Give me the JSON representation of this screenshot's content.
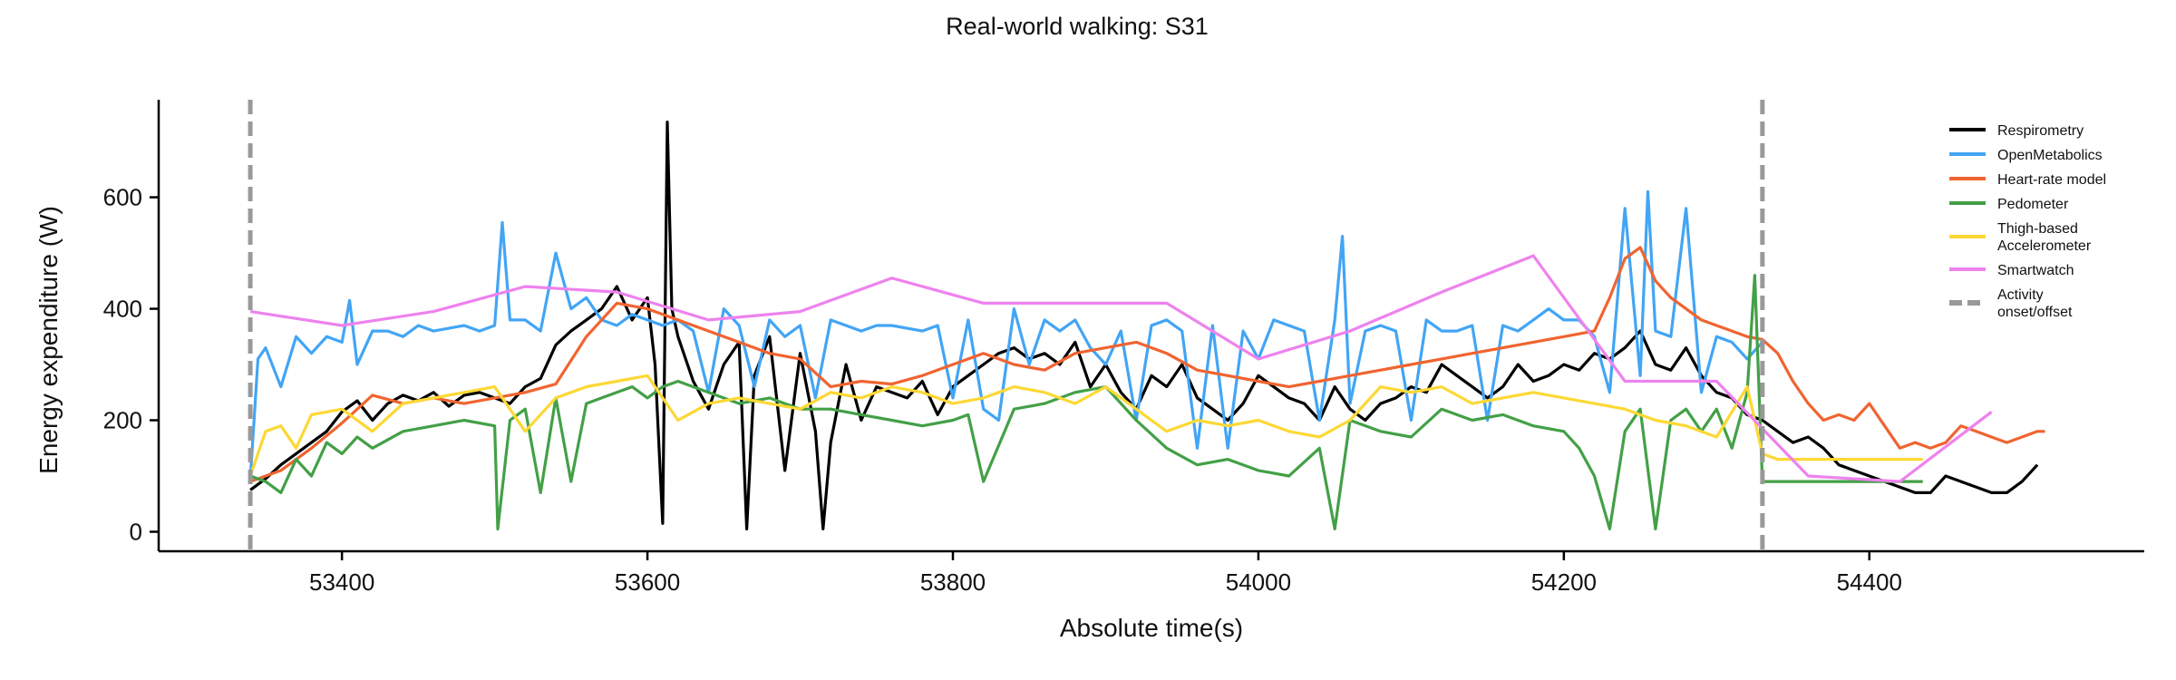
{
  "chart_data": {
    "type": "line",
    "title": "Real-world walking: S31",
    "xlabel": "Absolute time(s)",
    "ylabel": "Energy expenditure (W)",
    "xlim": [
      53280,
      54580
    ],
    "ylim": [
      -35,
      775
    ],
    "xticks": [
      53400,
      53600,
      53800,
      54000,
      54200,
      54400
    ],
    "yticks": [
      0,
      200,
      400,
      600
    ],
    "grid": false,
    "legend_position": "top-right",
    "series": [
      {
        "name": "Respirometry",
        "color": "#000000",
        "x": [
          53340,
          53350,
          53360,
          53370,
          53380,
          53390,
          53400,
          53410,
          53420,
          53430,
          53440,
          53450,
          53460,
          53470,
          53480,
          53490,
          53500,
          53510,
          53520,
          53530,
          53540,
          53550,
          53560,
          53570,
          53580,
          53590,
          53600,
          53605,
          53610,
          53613,
          53616,
          53620,
          53630,
          53640,
          53650,
          53660,
          53665,
          53670,
          53680,
          53690,
          53700,
          53710,
          53715,
          53720,
          53730,
          53740,
          53750,
          53760,
          53770,
          53780,
          53790,
          53800,
          53810,
          53820,
          53830,
          53840,
          53850,
          53860,
          53870,
          53880,
          53890,
          53900,
          53910,
          53920,
          53930,
          53940,
          53950,
          53960,
          53970,
          53980,
          53990,
          54000,
          54010,
          54020,
          54030,
          54040,
          54050,
          54060,
          54070,
          54080,
          54090,
          54100,
          54110,
          54120,
          54130,
          54140,
          54150,
          54160,
          54170,
          54180,
          54190,
          54200,
          54210,
          54220,
          54230,
          54240,
          54250,
          54260,
          54270,
          54280,
          54290,
          54300,
          54310,
          54320,
          54330,
          54340,
          54350,
          54360,
          54370,
          54380,
          54390,
          54400,
          54410,
          54420,
          54430,
          54440,
          54450,
          54460,
          54470,
          54480,
          54490,
          54500,
          54510
        ],
        "y": [
          75,
          95,
          120,
          140,
          160,
          180,
          215,
          235,
          200,
          230,
          245,
          235,
          250,
          225,
          245,
          250,
          240,
          230,
          260,
          275,
          335,
          360,
          380,
          400,
          440,
          380,
          420,
          300,
          15,
          735,
          400,
          350,
          270,
          220,
          300,
          340,
          5,
          280,
          350,
          110,
          320,
          180,
          5,
          160,
          300,
          200,
          260,
          250,
          240,
          270,
          210,
          260,
          280,
          300,
          320,
          330,
          310,
          320,
          300,
          340,
          260,
          300,
          250,
          220,
          280,
          260,
          300,
          240,
          220,
          200,
          230,
          280,
          260,
          240,
          230,
          200,
          260,
          220,
          200,
          230,
          240,
          260,
          250,
          300,
          280,
          260,
          240,
          260,
          300,
          270,
          280,
          300,
          290,
          320,
          310,
          330,
          360,
          300,
          290,
          330,
          280,
          250,
          240,
          210,
          200,
          180,
          160,
          170,
          150,
          120,
          110,
          100,
          90,
          80,
          70,
          70,
          100,
          90,
          80,
          70,
          70,
          90,
          120
        ]
      },
      {
        "name": "OpenMetabolics",
        "color": "#42A5F5",
        "x": [
          53340,
          53345,
          53350,
          53360,
          53370,
          53380,
          53390,
          53400,
          53405,
          53410,
          53420,
          53430,
          53440,
          53450,
          53460,
          53470,
          53480,
          53490,
          53500,
          53505,
          53510,
          53520,
          53530,
          53540,
          53550,
          53560,
          53570,
          53580,
          53590,
          53600,
          53610,
          53620,
          53630,
          53640,
          53650,
          53660,
          53670,
          53680,
          53690,
          53700,
          53710,
          53720,
          53730,
          53740,
          53750,
          53760,
          53770,
          53780,
          53790,
          53800,
          53810,
          53820,
          53830,
          53840,
          53850,
          53860,
          53870,
          53880,
          53890,
          53900,
          53910,
          53920,
          53930,
          53940,
          53950,
          53960,
          53970,
          53980,
          53990,
          54000,
          54010,
          54020,
          54030,
          54040,
          54050,
          54055,
          54060,
          54070,
          54080,
          54090,
          54100,
          54110,
          54120,
          54130,
          54140,
          54150,
          54160,
          54170,
          54180,
          54190,
          54200,
          54210,
          54220,
          54230,
          54240,
          54250,
          54255,
          54260,
          54270,
          54280,
          54290,
          54300,
          54310,
          54320,
          54330
        ],
        "y": [
          95,
          310,
          330,
          260,
          350,
          320,
          350,
          340,
          415,
          300,
          360,
          360,
          350,
          370,
          360,
          365,
          370,
          360,
          370,
          555,
          380,
          380,
          360,
          500,
          400,
          420,
          380,
          370,
          390,
          380,
          370,
          380,
          360,
          250,
          400,
          370,
          260,
          380,
          350,
          370,
          240,
          380,
          370,
          360,
          370,
          370,
          365,
          360,
          370,
          240,
          380,
          220,
          200,
          400,
          300,
          380,
          360,
          380,
          330,
          300,
          360,
          200,
          370,
          380,
          360,
          150,
          370,
          150,
          360,
          310,
          380,
          370,
          360,
          200,
          380,
          530,
          230,
          360,
          370,
          360,
          200,
          380,
          360,
          360,
          370,
          200,
          370,
          360,
          380,
          400,
          380,
          380,
          350,
          250,
          580,
          280,
          610,
          360,
          350,
          580,
          250,
          350,
          340,
          310,
          340
        ]
      },
      {
        "name": "Heart-rate model",
        "color": "#F06430",
        "x": [
          53340,
          53360,
          53380,
          53400,
          53420,
          53440,
          53460,
          53480,
          53500,
          53520,
          53540,
          53560,
          53580,
          53600,
          53620,
          53640,
          53660,
          53680,
          53700,
          53720,
          53740,
          53760,
          53780,
          53800,
          53820,
          53840,
          53860,
          53880,
          53900,
          53920,
          53940,
          53960,
          53980,
          54000,
          54020,
          54040,
          54060,
          54080,
          54100,
          54120,
          54140,
          54160,
          54180,
          54200,
          54220,
          54230,
          54240,
          54250,
          54260,
          54270,
          54280,
          54290,
          54300,
          54310,
          54320,
          54330,
          54340,
          54350,
          54360,
          54370,
          54380,
          54390,
          54400,
          54410,
          54420,
          54430,
          54440,
          54450,
          54460,
          54470,
          54480,
          54490,
          54500,
          54510,
          54515
        ],
        "y": [
          90,
          110,
          150,
          195,
          245,
          230,
          240,
          230,
          240,
          250,
          265,
          350,
          410,
          400,
          380,
          360,
          340,
          320,
          310,
          260,
          270,
          265,
          280,
          300,
          320,
          300,
          290,
          320,
          330,
          340,
          320,
          290,
          280,
          270,
          260,
          270,
          280,
          290,
          300,
          310,
          320,
          330,
          340,
          350,
          360,
          420,
          490,
          510,
          450,
          420,
          400,
          380,
          370,
          360,
          350,
          345,
          320,
          270,
          230,
          200,
          210,
          200,
          230,
          190,
          150,
          160,
          150,
          160,
          190,
          180,
          170,
          160,
          170,
          180,
          180
        ]
      },
      {
        "name": "Pedometer",
        "color": "#43A047",
        "x": [
          53340,
          53350,
          53360,
          53370,
          53380,
          53390,
          53400,
          53410,
          53420,
          53440,
          53460,
          53480,
          53500,
          53502,
          53510,
          53520,
          53530,
          53540,
          53550,
          53560,
          53570,
          53580,
          53590,
          53600,
          53610,
          53620,
          53640,
          53660,
          53680,
          53690,
          53700,
          53720,
          53740,
          53760,
          53780,
          53800,
          53810,
          53820,
          53840,
          53860,
          53880,
          53900,
          53920,
          53940,
          53960,
          53980,
          54000,
          54020,
          54040,
          54050,
          54060,
          54080,
          54100,
          54120,
          54140,
          54160,
          54180,
          54200,
          54210,
          54220,
          54230,
          54240,
          54250,
          54260,
          54270,
          54280,
          54290,
          54300,
          54310,
          54320,
          54325,
          54330,
          54340,
          54360,
          54380,
          54400,
          54420,
          54435
        ],
        "y": [
          100,
          90,
          70,
          130,
          100,
          160,
          140,
          170,
          150,
          180,
          190,
          200,
          190,
          5,
          200,
          220,
          70,
          240,
          90,
          230,
          240,
          250,
          260,
          240,
          260,
          270,
          250,
          230,
          240,
          230,
          220,
          220,
          210,
          200,
          190,
          200,
          210,
          90,
          220,
          230,
          250,
          260,
          200,
          150,
          120,
          130,
          110,
          100,
          150,
          5,
          200,
          180,
          170,
          220,
          200,
          210,
          190,
          180,
          150,
          100,
          5,
          180,
          220,
          5,
          200,
          220,
          180,
          220,
          150,
          250,
          460,
          90,
          90,
          90,
          90,
          90,
          90,
          90
        ]
      },
      {
        "name": "Thigh-based\nAccelerometer",
        "color": "#FDD835",
        "x": [
          53340,
          53350,
          53360,
          53370,
          53380,
          53400,
          53420,
          53440,
          53460,
          53480,
          53500,
          53520,
          53540,
          53560,
          53580,
          53600,
          53620,
          53640,
          53660,
          53680,
          53700,
          53720,
          53740,
          53760,
          53780,
          53800,
          53820,
          53840,
          53860,
          53880,
          53900,
          53920,
          53940,
          53960,
          53980,
          54000,
          54020,
          54040,
          54060,
          54080,
          54100,
          54120,
          54140,
          54160,
          54180,
          54200,
          54220,
          54240,
          54260,
          54280,
          54300,
          54320,
          54330,
          54340,
          54360,
          54380,
          54400,
          54420,
          54435
        ],
        "y": [
          100,
          180,
          190,
          150,
          210,
          220,
          180,
          230,
          240,
          250,
          260,
          180,
          240,
          260,
          270,
          280,
          200,
          230,
          240,
          230,
          220,
          250,
          240,
          260,
          250,
          230,
          240,
          260,
          250,
          230,
          260,
          220,
          180,
          200,
          190,
          200,
          180,
          170,
          200,
          260,
          250,
          260,
          230,
          240,
          250,
          240,
          230,
          220,
          200,
          190,
          170,
          260,
          140,
          130,
          130,
          130,
          130,
          130,
          130
        ]
      },
      {
        "name": "Smartwatch",
        "color": "#EE82EE",
        "x": [
          53340,
          53400,
          53460,
          53520,
          53580,
          53640,
          53700,
          53760,
          53820,
          53880,
          53940,
          54000,
          54060,
          54120,
          54180,
          54240,
          54300,
          54360,
          54420,
          54480
        ],
        "y": [
          395,
          370,
          395,
          440,
          430,
          380,
          395,
          455,
          410,
          410,
          410,
          310,
          360,
          430,
          495,
          270,
          270,
          100,
          90,
          215
        ]
      }
    ],
    "reference_lines": [
      {
        "label": "Activity\nonset/offset",
        "color": "#999999",
        "style": "dashed",
        "x": [
          53340,
          54330
        ]
      }
    ]
  }
}
